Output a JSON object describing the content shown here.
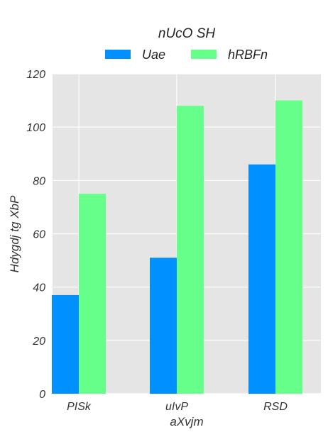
{
  "chart_data": {
    "type": "bar",
    "categories": [
      "PISk",
      "uIvP",
      "RSD"
    ],
    "series": [
      {
        "name": "Uae",
        "values": [
          37,
          51,
          86
        ],
        "color": "#0090ff"
      },
      {
        "name": "hRBFn",
        "values": [
          75,
          108,
          110
        ],
        "color": "#66ff8a"
      }
    ],
    "xlabel": "aXvjm",
    "ylabel": "Hdygdj tg XbP",
    "ylim": [
      0,
      120
    ],
    "yticks": [
      0,
      20,
      40,
      60,
      80,
      100,
      120
    ],
    "legend": {
      "title": "nUcO SH",
      "placement": "top-center"
    },
    "grid": true,
    "background": "#e5e5e5"
  }
}
